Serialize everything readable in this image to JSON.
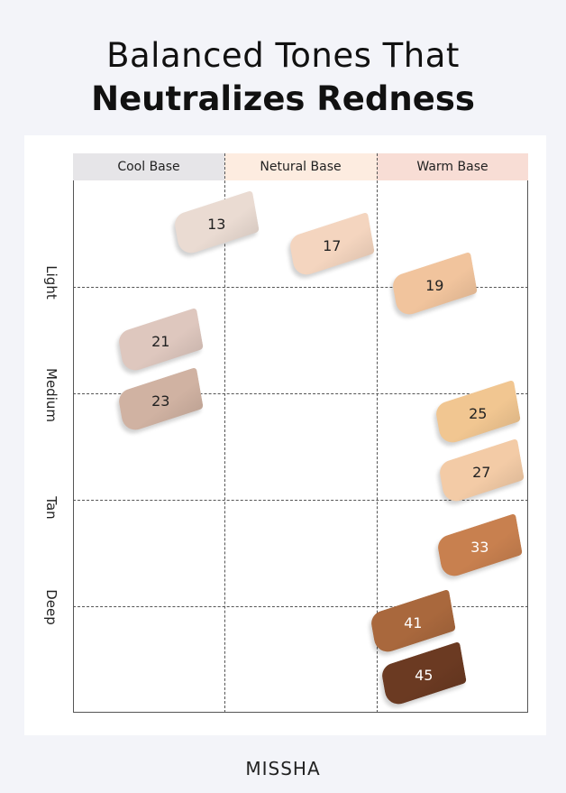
{
  "title": {
    "line1": "Balanced Tones That",
    "line2": "Neutralizes Redness"
  },
  "columns": [
    {
      "label": "Cool Base",
      "color": "#e6e5e8"
    },
    {
      "label": "Netural Base",
      "color": "#fdece0"
    },
    {
      "label": "Warm Base",
      "color": "#f8ddd5"
    }
  ],
  "rows": [
    "Light",
    "Medium",
    "Tan",
    "Deep"
  ],
  "shades": [
    {
      "label": "13",
      "color": "#eadbd2",
      "text": "#222"
    },
    {
      "label": "17",
      "color": "#f4d5bf",
      "text": "#222"
    },
    {
      "label": "19",
      "color": "#f1c49d",
      "text": "#222"
    },
    {
      "label": "21",
      "color": "#dec7be",
      "text": "#222"
    },
    {
      "label": "23",
      "color": "#d0b2a2",
      "text": "#222"
    },
    {
      "label": "25",
      "color": "#f1c691",
      "text": "#222"
    },
    {
      "label": "27",
      "color": "#f3cba6",
      "text": "#222"
    },
    {
      "label": "33",
      "color": "#c8804f",
      "text": "#fff"
    },
    {
      "label": "41",
      "color": "#a9683d",
      "text": "#fff"
    },
    {
      "label": "45",
      "color": "#6b3a22",
      "text": "#fff"
    }
  ],
  "brand": "MISSHA"
}
